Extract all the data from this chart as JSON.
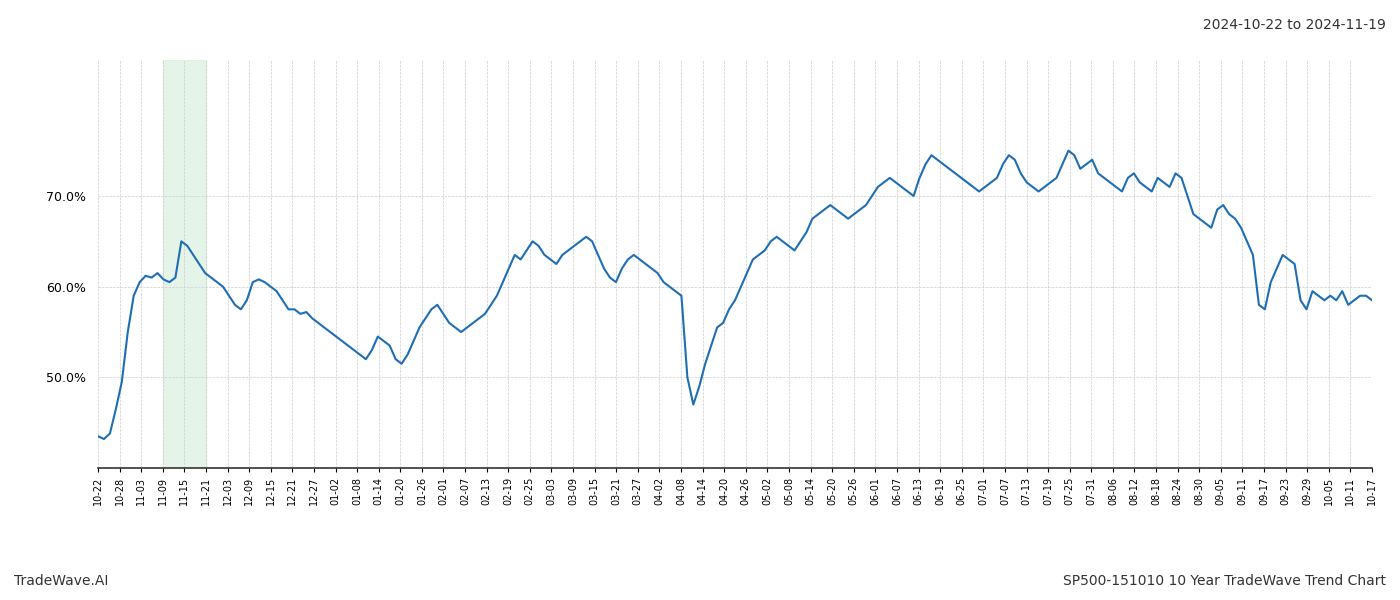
{
  "title_top_right": "2024-10-22 to 2024-11-19",
  "footer_left": "TradeWave.AI",
  "footer_right": "SP500-151010 10 Year TradeWave Trend Chart",
  "line_color": "#1f6eb5",
  "line_width": 1.5,
  "bg_color": "#ffffff",
  "grid_color": "#cccccc",
  "shade_color": "#d4edda",
  "shade_alpha": 0.6,
  "ylim": [
    40,
    85
  ],
  "yticks": [
    50.0,
    60.0,
    70.0
  ],
  "x_labels": [
    "10-22",
    "10-28",
    "11-03",
    "11-09",
    "11-15",
    "11-21",
    "12-03",
    "12-09",
    "12-15",
    "12-21",
    "12-27",
    "01-02",
    "01-08",
    "01-14",
    "01-20",
    "01-26",
    "02-01",
    "02-07",
    "02-13",
    "02-19",
    "02-25",
    "03-03",
    "03-09",
    "03-15",
    "03-21",
    "03-27",
    "04-02",
    "04-08",
    "04-14",
    "04-20",
    "04-26",
    "05-02",
    "05-08",
    "05-14",
    "05-20",
    "05-26",
    "06-01",
    "06-07",
    "06-13",
    "06-19",
    "06-25",
    "07-01",
    "07-07",
    "07-13",
    "07-19",
    "07-25",
    "07-31",
    "08-06",
    "08-12",
    "08-18",
    "08-24",
    "08-30",
    "09-05",
    "09-11",
    "09-17",
    "09-23",
    "09-29",
    "10-05",
    "10-11",
    "10-17"
  ],
  "shade_label_start": "11-09",
  "shade_label_end": "11-21",
  "values": [
    43.5,
    43.2,
    43.8,
    46.5,
    49.5,
    55.0,
    59.0,
    60.5,
    61.2,
    61.0,
    61.5,
    60.8,
    60.5,
    61.0,
    65.0,
    64.5,
    63.5,
    62.5,
    61.5,
    61.0,
    60.5,
    60.0,
    59.0,
    58.0,
    57.5,
    58.5,
    60.5,
    60.8,
    60.5,
    60.0,
    59.5,
    58.5,
    57.5,
    57.5,
    57.0,
    57.2,
    56.5,
    56.0,
    55.5,
    55.0,
    54.5,
    54.0,
    53.5,
    53.0,
    52.5,
    52.0,
    53.0,
    54.5,
    54.0,
    53.5,
    52.0,
    51.5,
    52.5,
    54.0,
    55.5,
    56.5,
    57.5,
    58.0,
    57.0,
    56.0,
    55.5,
    55.0,
    55.5,
    56.0,
    56.5,
    57.0,
    58.0,
    59.0,
    60.5,
    62.0,
    63.5,
    63.0,
    64.0,
    65.0,
    64.5,
    63.5,
    63.0,
    62.5,
    63.5,
    64.0,
    64.5,
    65.0,
    65.5,
    65.0,
    63.5,
    62.0,
    61.0,
    60.5,
    62.0,
    63.0,
    63.5,
    63.0,
    62.5,
    62.0,
    61.5,
    60.5,
    60.0,
    59.5,
    59.0,
    50.0,
    47.0,
    49.0,
    51.5,
    53.5,
    55.5,
    56.0,
    57.5,
    58.5,
    60.0,
    61.5,
    63.0,
    63.5,
    64.0,
    65.0,
    65.5,
    65.0,
    64.5,
    64.0,
    65.0,
    66.0,
    67.5,
    68.0,
    68.5,
    69.0,
    68.5,
    68.0,
    67.5,
    68.0,
    68.5,
    69.0,
    70.0,
    71.0,
    71.5,
    72.0,
    71.5,
    71.0,
    70.5,
    70.0,
    72.0,
    73.5,
    74.5,
    74.0,
    73.5,
    73.0,
    72.5,
    72.0,
    71.5,
    71.0,
    70.5,
    71.0,
    71.5,
    72.0,
    73.5,
    74.5,
    74.0,
    72.5,
    71.5,
    71.0,
    70.5,
    71.0,
    71.5,
    72.0,
    73.5,
    75.0,
    74.5,
    73.0,
    73.5,
    74.0,
    72.5,
    72.0,
    71.5,
    71.0,
    70.5,
    72.0,
    72.5,
    71.5,
    71.0,
    70.5,
    72.0,
    71.5,
    71.0,
    72.5,
    72.0,
    70.0,
    68.0,
    67.5,
    67.0,
    66.5,
    68.5,
    69.0,
    68.0,
    67.5,
    66.5,
    65.0,
    63.5,
    58.0,
    57.5,
    60.5,
    62.0,
    63.5,
    63.0,
    62.5,
    58.5,
    57.5,
    59.5,
    59.0,
    58.5,
    59.0,
    58.5,
    59.5,
    58.0,
    58.5,
    59.0,
    59.0,
    58.5
  ]
}
